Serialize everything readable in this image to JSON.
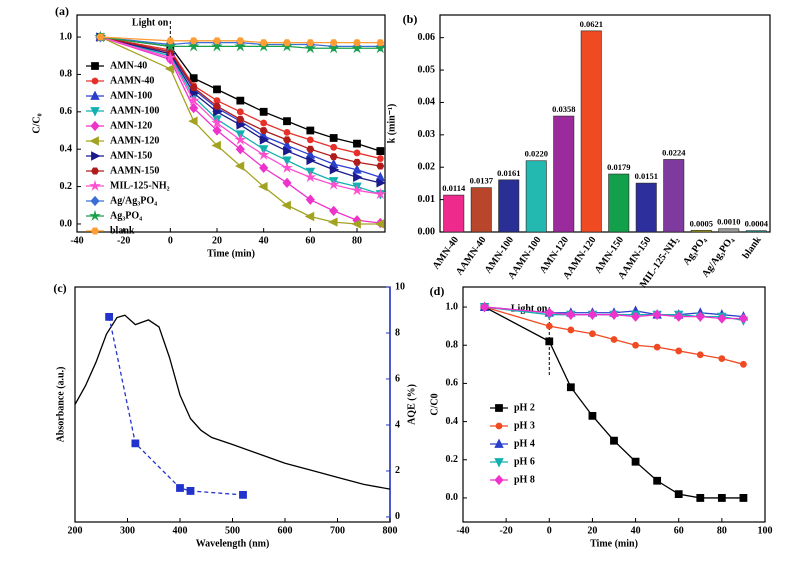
{
  "chart_data": [
    {
      "type": "line",
      "label": "(a)",
      "xlabel": "Time (min)",
      "ylabel": "C/C₀",
      "xlim": [
        -40,
        92
      ],
      "xticks": [
        -40,
        -20,
        0,
        20,
        40,
        60,
        80
      ],
      "ylim": [
        -0.043,
        1.118
      ],
      "yticks": [
        {
          "value": 0,
          "label": "0.0"
        },
        0.2,
        0.4,
        0.6,
        0.8,
        {
          "value": 1,
          "label": "1.0"
        }
      ],
      "grid": false,
      "legend": "lower left",
      "annotation": {
        "text": "Light on",
        "x": 0
      },
      "x": [
        -30,
        0,
        10,
        20,
        30,
        40,
        50,
        60,
        70,
        80,
        90
      ],
      "series": [
        {
          "name": "AMN-40",
          "color": "#000000",
          "marker": "square",
          "values": [
            1.0,
            0.95,
            0.78,
            0.72,
            0.66,
            0.6,
            0.55,
            0.5,
            0.46,
            0.43,
            0.39
          ]
        },
        {
          "name": "AAMN-40",
          "color": "#e8302a",
          "marker": "circle",
          "values": [
            1.0,
            0.93,
            0.74,
            0.66,
            0.6,
            0.54,
            0.49,
            0.45,
            0.41,
            0.38,
            0.35
          ]
        },
        {
          "name": "AMN-100",
          "color": "#2b3fcc",
          "marker": "triangle-up",
          "values": [
            1.0,
            0.92,
            0.72,
            0.62,
            0.55,
            0.47,
            0.42,
            0.37,
            0.32,
            0.29,
            0.25
          ]
        },
        {
          "name": "AAMN-100",
          "color": "#12b0b0",
          "marker": "triangle-down",
          "values": [
            1.0,
            0.9,
            0.68,
            0.56,
            0.48,
            0.4,
            0.34,
            0.28,
            0.23,
            0.2,
            0.16
          ]
        },
        {
          "name": "AMN-120",
          "color": "#ee33cc",
          "marker": "diamond",
          "values": [
            1.0,
            0.88,
            0.62,
            0.5,
            0.4,
            0.3,
            0.22,
            0.13,
            0.07,
            0.02,
            0.005
          ]
        },
        {
          "name": "AAMN-120",
          "color": "#a3a322",
          "marker": "triangle-left",
          "values": [
            1.0,
            0.83,
            0.55,
            0.42,
            0.31,
            0.2,
            0.1,
            0.04,
            0.01,
            0.0,
            0.0
          ]
        },
        {
          "name": "AMN-150",
          "color": "#1a1a8c",
          "marker": "triangle-right",
          "values": [
            1.0,
            0.91,
            0.7,
            0.6,
            0.53,
            0.45,
            0.39,
            0.34,
            0.29,
            0.25,
            0.22
          ]
        },
        {
          "name": "AAMN-150",
          "color": "#b01c1c",
          "marker": "hexagon",
          "values": [
            1.0,
            0.92,
            0.73,
            0.63,
            0.56,
            0.5,
            0.45,
            0.4,
            0.36,
            0.33,
            0.31
          ]
        },
        {
          "name": "MIL-125-NH₂",
          "color": "#ff4fd0",
          "marker": "star",
          "values": [
            1.0,
            0.89,
            0.66,
            0.54,
            0.45,
            0.37,
            0.3,
            0.25,
            0.21,
            0.18,
            0.16
          ]
        },
        {
          "name": "Ag/Ag₃PO₄",
          "color": "#3a6fd8",
          "marker": "diamond",
          "values": [
            1.0,
            0.96,
            0.97,
            0.97,
            0.97,
            0.96,
            0.96,
            0.96,
            0.95,
            0.95,
            0.95
          ]
        },
        {
          "name": "Ag₃PO₄",
          "color": "#1aa04a",
          "marker": "star",
          "values": [
            1.0,
            0.95,
            0.95,
            0.95,
            0.95,
            0.95,
            0.95,
            0.94,
            0.94,
            0.94,
            0.94
          ]
        },
        {
          "name": "blank",
          "color": "#ff9c33",
          "marker": "hexagon",
          "values": [
            1.0,
            0.98,
            0.98,
            0.98,
            0.98,
            0.97,
            0.97,
            0.97,
            0.97,
            0.97,
            0.97
          ]
        }
      ]
    },
    {
      "type": "bar",
      "label": "(b)",
      "ylabel": "k (min⁻¹)",
      "ylim": [
        0,
        0.067
      ],
      "yticks": [
        {
          "value": 0,
          "label": "0.00"
        },
        0.01,
        0.02,
        0.03,
        0.04,
        0.05,
        0.06
      ],
      "grid": false,
      "categories": [
        "AMN-40",
        "AAMN-40",
        "AMN-100",
        "AAMN-100",
        "AMN-120",
        "AAMN-120",
        "AMN-150",
        "AAMN-150",
        "MIL-125-NH₂",
        "Ag₃PO₄",
        "Ag/Ag₃PO₄",
        "blank"
      ],
      "values": [
        0.0114,
        0.0137,
        0.0161,
        0.022,
        0.0358,
        0.0621,
        0.0179,
        0.0151,
        0.0224,
        0.0005,
        0.001,
        0.0004
      ],
      "value_labels": [
        "0.0114",
        "0.0137",
        "0.0161",
        "0.0220",
        "0.0358",
        "0.0621",
        "0.0179",
        "0.0151",
        "0.0224",
        "0.0005",
        "0.0010",
        "0.0004"
      ],
      "colors": [
        "#ee2b8c",
        "#b8462a",
        "#2a2f96",
        "#23b8b0",
        "#9b2b9c",
        "#f04a23",
        "#13a04a",
        "#2c2f9c",
        "#7f3aa0",
        "#a4a21e",
        "#9a9a9a",
        "#1a9a8a"
      ]
    },
    {
      "type": "line",
      "label": "(c)",
      "xlabel": "Wavelength (nm)",
      "ylabel": "Absorbance (a.u.)",
      "y2label": "AQE (%)",
      "y2color": "#2233cc",
      "xlim": [
        200,
        800
      ],
      "xticks": [
        200,
        300,
        400,
        500,
        600,
        700,
        800
      ],
      "ylim": [
        0,
        1
      ],
      "y2lim": [
        -0.22,
        10
      ],
      "y2ticks": [
        0,
        2,
        4,
        6,
        8,
        10
      ],
      "grid": false,
      "series": [
        {
          "name": "Absorbance",
          "color": "#000000",
          "marker": "none",
          "dash": false,
          "x": [
            200,
            220,
            240,
            260,
            280,
            295,
            315,
            340,
            360,
            380,
            400,
            420,
            440,
            460,
            500,
            550,
            600,
            650,
            700,
            750,
            800
          ],
          "values": [
            0.5,
            0.58,
            0.68,
            0.8,
            0.87,
            0.88,
            0.84,
            0.86,
            0.83,
            0.7,
            0.54,
            0.44,
            0.39,
            0.36,
            0.33,
            0.29,
            0.25,
            0.22,
            0.19,
            0.16,
            0.14
          ]
        },
        {
          "name": "AQE",
          "color": "#2233cc",
          "marker": "square",
          "dash": true,
          "axis": "y2",
          "x": [
            265,
            315,
            400,
            420,
            520
          ],
          "values": [
            8.7,
            3.2,
            1.26,
            1.13,
            0.96
          ]
        }
      ]
    },
    {
      "type": "line",
      "label": "(d)",
      "xlabel": "Time (min)",
      "ylabel": "C/C0",
      "xlim": [
        -40,
        100
      ],
      "xticks": [
        -40,
        -20,
        0,
        20,
        40,
        60,
        80,
        100
      ],
      "ylim": [
        -0.126,
        1.105
      ],
      "yticks": [
        {
          "value": 0,
          "label": "0.0"
        },
        0.2,
        0.4,
        0.6,
        0.8,
        {
          "value": 1,
          "label": "1.0"
        }
      ],
      "grid": false,
      "legend": "lower left",
      "annotation": {
        "text": "Light on",
        "x": 0
      },
      "x": [
        -30,
        0,
        10,
        20,
        30,
        40,
        50,
        60,
        70,
        80,
        90
      ],
      "series": [
        {
          "name": "pH 2",
          "color": "#000000",
          "marker": "square",
          "values": [
            1.0,
            0.82,
            0.58,
            0.43,
            0.3,
            0.19,
            0.09,
            0.02,
            0.0,
            0.0,
            0.0
          ]
        },
        {
          "name": "pH 3",
          "color": "#f04a23",
          "marker": "circle",
          "values": [
            1.0,
            0.9,
            0.88,
            0.86,
            0.83,
            0.8,
            0.79,
            0.77,
            0.75,
            0.73,
            0.7
          ]
        },
        {
          "name": "pH 4",
          "color": "#2b3fcc",
          "marker": "triangle-up",
          "values": [
            1.0,
            0.97,
            0.97,
            0.97,
            0.97,
            0.98,
            0.96,
            0.96,
            0.97,
            0.96,
            0.95
          ]
        },
        {
          "name": "pH 6",
          "color": "#12b0b0",
          "marker": "triangle-down",
          "values": [
            1.0,
            0.96,
            0.96,
            0.96,
            0.96,
            0.96,
            0.96,
            0.96,
            0.95,
            0.95,
            0.93
          ]
        },
        {
          "name": "pH 8",
          "color": "#ee33cc",
          "marker": "diamond",
          "values": [
            1.0,
            0.97,
            0.96,
            0.96,
            0.96,
            0.95,
            0.96,
            0.95,
            0.95,
            0.94,
            0.94
          ]
        }
      ]
    }
  ]
}
